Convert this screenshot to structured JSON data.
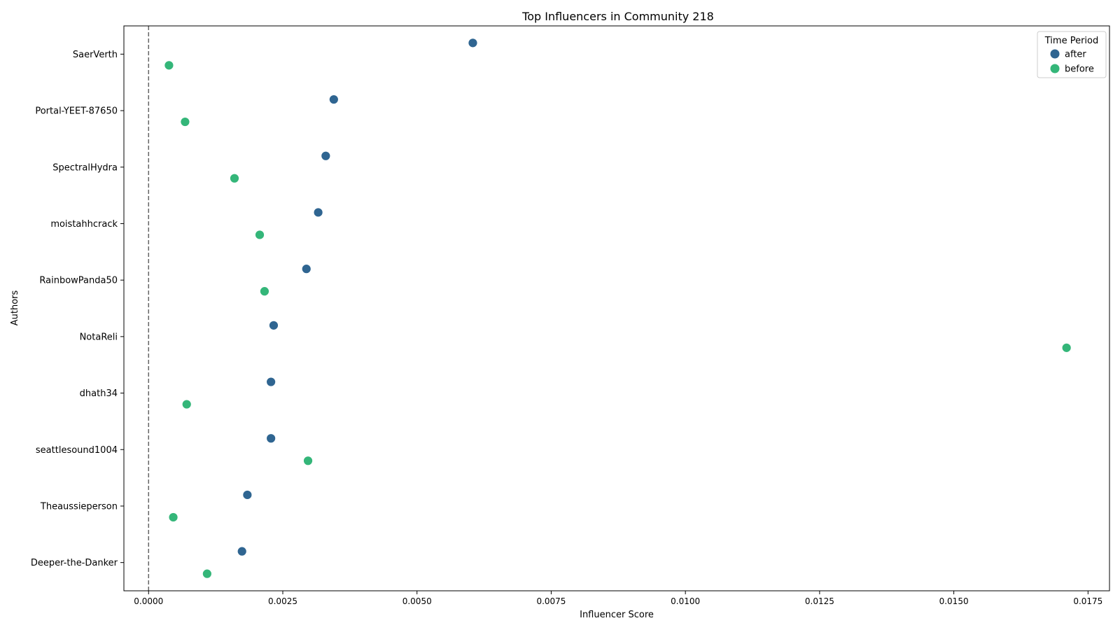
{
  "chart_data": {
    "type": "scatter",
    "title": "Top Influencers in Community 218",
    "xlabel": "Influencer Score",
    "ylabel": "Authors",
    "xlim": [
      -0.00046,
      0.0179
    ],
    "xticks": [
      "0.0000",
      "0.0025",
      "0.0050",
      "0.0075",
      "0.0100",
      "0.0125",
      "0.0150",
      "0.0175"
    ],
    "xtick_values": [
      0,
      0.0025,
      0.005,
      0.0075,
      0.01,
      0.0125,
      0.015,
      0.0175
    ],
    "reference_line": {
      "x": 0,
      "style": "dashed"
    },
    "grid": false,
    "legend": {
      "title": "Time Period",
      "placement": "top-right"
    },
    "categories": [
      "SaerVerth",
      "Portal-YEET-87650",
      "SpectralHydra",
      "moistahhcrack",
      "RainbowPanda50",
      "NotaReli",
      "dhath34",
      "seattlesound1004",
      "Theaussieperson",
      "Deeper-the-Danker"
    ],
    "series": [
      {
        "name": "after",
        "color": "#2f6591",
        "values": [
          0.00604,
          0.00345,
          0.0033,
          0.00316,
          0.00294,
          0.00233,
          0.00228,
          0.00228,
          0.00184,
          0.00174
        ]
      },
      {
        "name": "before",
        "color": "#34b679",
        "values": [
          0.00038,
          0.00068,
          0.0016,
          0.00207,
          0.00216,
          0.0171,
          0.00071,
          0.00297,
          0.00046,
          0.00109
        ]
      }
    ]
  }
}
